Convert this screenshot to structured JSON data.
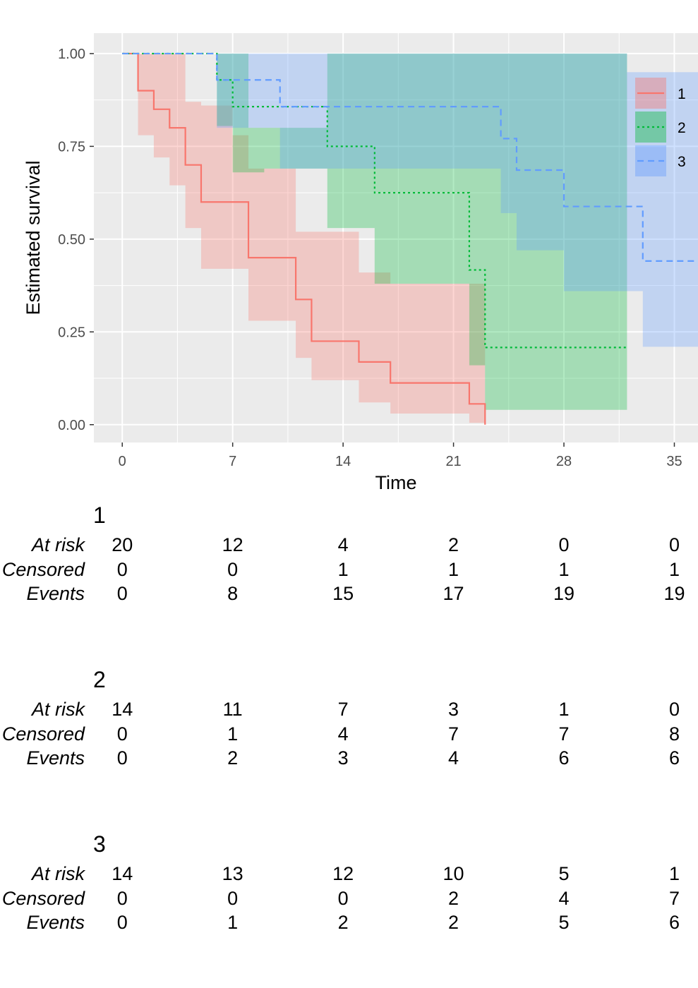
{
  "chart_data": {
    "type": "line",
    "subtype": "kaplan-meier-step",
    "xlabel": "Time",
    "ylabel": "Estimated survival",
    "xlim": [
      -1.8,
      36.5
    ],
    "ylim": [
      -0.048,
      1.055
    ],
    "x_ticks": [
      0,
      7,
      14,
      21,
      28,
      35
    ],
    "x_tick_labels": [
      "0",
      "7",
      "14",
      "21",
      "28",
      "35"
    ],
    "y_ticks": [
      0,
      0.25,
      0.5,
      0.75,
      1.0
    ],
    "y_tick_labels": [
      "0.00",
      "0.25",
      "0.50",
      "0.75",
      "1.00"
    ],
    "grid": true,
    "legend_position": "right",
    "series": [
      {
        "name": "1",
        "color": "#F8766D",
        "linetype": "solid",
        "steps": [
          [
            0,
            1.0
          ],
          [
            1,
            0.9
          ],
          [
            2,
            0.85
          ],
          [
            3,
            0.8
          ],
          [
            4,
            0.7
          ],
          [
            5,
            0.6
          ],
          [
            8,
            0.45
          ],
          [
            11,
            0.3375
          ],
          [
            12,
            0.225
          ],
          [
            15,
            0.169
          ],
          [
            17,
            0.1125
          ],
          [
            22,
            0.056
          ],
          [
            23,
            0.0
          ]
        ],
        "end_x": 23,
        "band": [
          [
            0,
            1.0,
            1.0
          ],
          [
            1,
            0.78,
            1.0
          ],
          [
            2,
            0.72,
            1.0
          ],
          [
            3,
            0.645,
            1.0
          ],
          [
            4,
            0.53,
            0.87
          ],
          [
            5,
            0.42,
            0.86
          ],
          [
            7,
            0.42,
            0.78
          ],
          [
            8,
            0.28,
            0.69
          ],
          [
            11,
            0.18,
            0.52
          ],
          [
            12,
            0.12,
            0.52
          ],
          [
            15,
            0.06,
            0.41
          ],
          [
            17,
            0.03,
            0.38
          ],
          [
            22,
            0.005,
            0.38
          ],
          [
            23,
            0.005,
            0.38
          ]
        ]
      },
      {
        "name": "2",
        "color": "#00BA38",
        "linetype": "dotted",
        "steps": [
          [
            0,
            1.0
          ],
          [
            6,
            0.929
          ],
          [
            7,
            0.857
          ],
          [
            13,
            0.75
          ],
          [
            16,
            0.625
          ],
          [
            22,
            0.417
          ],
          [
            23,
            0.208
          ]
        ],
        "end_x": 32,
        "band": [
          [
            0,
            1.0,
            1.0
          ],
          [
            6,
            0.805,
            1.0
          ],
          [
            7,
            0.68,
            1.0
          ],
          [
            8,
            0.68,
            0.8
          ],
          [
            9,
            0.69,
            0.8
          ],
          [
            13,
            0.53,
            1.0
          ],
          [
            16,
            0.38,
            1.0
          ],
          [
            22,
            0.16,
            1.0
          ],
          [
            23,
            0.04,
            1.0
          ],
          [
            32,
            0.04,
            1.0
          ]
        ]
      },
      {
        "name": "3",
        "color": "#619CFF",
        "linetype": "dashed",
        "steps": [
          [
            0,
            1.0
          ],
          [
            6,
            0.929
          ],
          [
            10,
            0.857
          ],
          [
            24,
            0.771
          ],
          [
            25,
            0.686
          ],
          [
            28,
            0.588
          ],
          [
            33,
            0.441
          ]
        ],
        "end_x": 36.5,
        "band": [
          [
            0,
            1.0,
            1.0
          ],
          [
            6,
            0.8,
            1.0
          ],
          [
            10,
            0.69,
            1.0
          ],
          [
            24,
            0.57,
            1.0
          ],
          [
            25,
            0.47,
            1.0
          ],
          [
            28,
            0.36,
            1.0
          ],
          [
            32,
            0.36,
            0.95
          ],
          [
            33,
            0.21,
            0.95
          ],
          [
            36.5,
            0.21,
            0.95
          ]
        ]
      }
    ]
  },
  "risk_table": {
    "time_points": [
      0,
      7,
      14,
      21,
      28,
      35
    ],
    "row_labels": [
      "At risk",
      "Censored",
      "Events"
    ],
    "groups": [
      {
        "name": "1",
        "at_risk": [
          "20",
          "12",
          "4",
          "2",
          "0",
          "0"
        ],
        "censored": [
          "0",
          "0",
          "1",
          "1",
          "1",
          "1"
        ],
        "events": [
          "0",
          "8",
          "15",
          "17",
          "19",
          "19"
        ]
      },
      {
        "name": "2",
        "at_risk": [
          "14",
          "11",
          "7",
          "3",
          "1",
          "0"
        ],
        "censored": [
          "0",
          "1",
          "4",
          "7",
          "7",
          "8"
        ],
        "events": [
          "0",
          "2",
          "3",
          "4",
          "6",
          "6"
        ]
      },
      {
        "name": "3",
        "at_risk": [
          "14",
          "13",
          "12",
          "10",
          "5",
          "1"
        ],
        "censored": [
          "0",
          "0",
          "0",
          "2",
          "4",
          "7"
        ],
        "events": [
          "0",
          "1",
          "2",
          "2",
          "5",
          "6"
        ]
      }
    ]
  }
}
